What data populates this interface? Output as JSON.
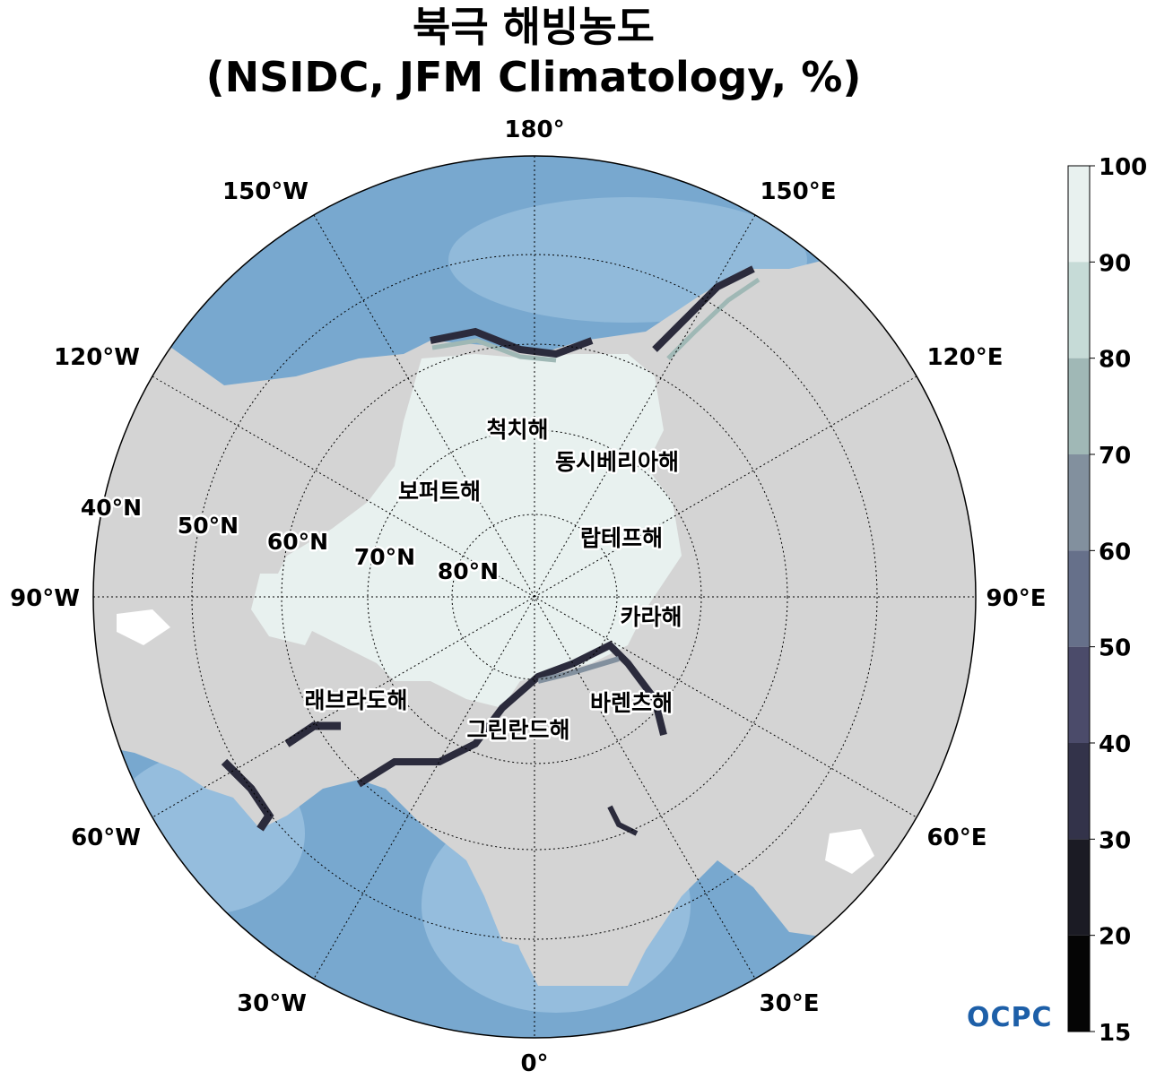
{
  "title": {
    "line1": "북극 해빙농도",
    "line2": "(NSIDC, JFM Climatology, %)"
  },
  "longitude_labels": {
    "lon_180": "180°",
    "lon_150w": "150°W",
    "lon_150e": "150°E",
    "lon_120w": "120°W",
    "lon_120e": "120°E",
    "lon_90w": "90°W",
    "lon_90e": "90°E",
    "lon_60w": "60°W",
    "lon_60e": "60°E",
    "lon_30w": "30°W",
    "lon_30e": "30°E",
    "lon_0": "0°"
  },
  "latitude_labels": {
    "lat_40": "40°N",
    "lat_50": "50°N",
    "lat_60": "60°N",
    "lat_70": "70°N",
    "lat_80": "80°N"
  },
  "sea_labels": {
    "chukchi": "척치해",
    "east_siberian": "동시베리아해",
    "beaufort": "보퍼트해",
    "laptev": "랍테프해",
    "kara": "카라해",
    "labrador": "래브라도해",
    "barents": "바렌츠해",
    "greenland": "그린란드해"
  },
  "colorbar": {
    "ticks": [
      "15",
      "20",
      "30",
      "40",
      "50",
      "60",
      "70",
      "80",
      "90",
      "100"
    ],
    "colors": [
      "#050505",
      "#1b1b24",
      "#33334a",
      "#4b4b6a",
      "#66708a",
      "#82909e",
      "#a0b8b6",
      "#c6dbd7",
      "#e8f1ef"
    ]
  },
  "logo": "OCPC",
  "colors": {
    "land": "#d4d4d4",
    "ocean": "#78a8cf",
    "ocean_light": "#a9cbe6",
    "ice": "#e8f1ef"
  }
}
